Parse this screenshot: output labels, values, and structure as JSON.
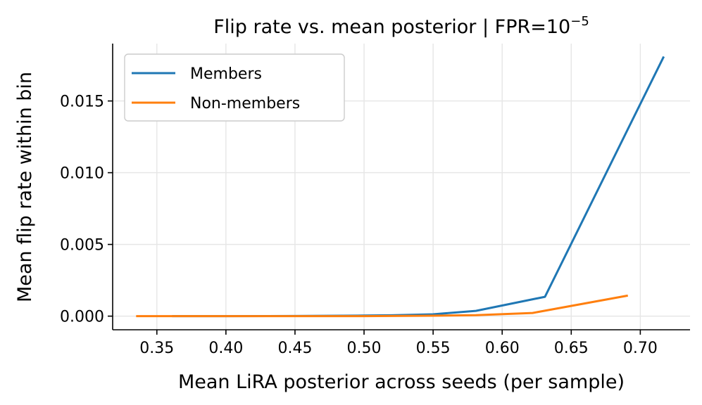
{
  "chart_data": {
    "type": "line",
    "title": "Flip rate vs. mean posterior  |  FPR=10",
    "title_superscript": "−5",
    "xlabel": "Mean LiRA posterior across seeds (per sample)",
    "ylabel": "Mean flip rate within bin",
    "xlim": [
      0.318,
      0.736
    ],
    "ylim": [
      -0.00095,
      0.019
    ],
    "xticks": [
      0.35,
      0.4,
      0.45,
      0.5,
      0.55,
      0.6,
      0.65,
      0.7
    ],
    "xtick_labels": [
      "0.35",
      "0.40",
      "0.45",
      "0.50",
      "0.55",
      "0.60",
      "0.65",
      "0.70"
    ],
    "yticks": [
      0.0,
      0.005,
      0.01,
      0.015
    ],
    "ytick_labels": [
      "0.000",
      "0.005",
      "0.010",
      "0.015"
    ],
    "grid": true,
    "legend_position": "top-left",
    "series": [
      {
        "name": "Members",
        "color": "#1f77b4",
        "x": [
          0.361,
          0.4,
          0.45,
          0.5,
          0.52,
          0.55,
          0.581,
          0.631,
          0.717
        ],
        "y": [
          0.0,
          0.0,
          1e-05,
          4e-05,
          6e-05,
          0.00013,
          0.00037,
          0.00135,
          0.0181
        ]
      },
      {
        "name": "Non-members",
        "color": "#ff7f0e",
        "x": [
          0.335,
          0.4,
          0.45,
          0.5,
          0.55,
          0.581,
          0.622,
          0.691
        ],
        "y": [
          0.0,
          0.0,
          0.0,
          0.0,
          3e-05,
          7e-05,
          0.00022,
          0.00143
        ]
      }
    ]
  }
}
